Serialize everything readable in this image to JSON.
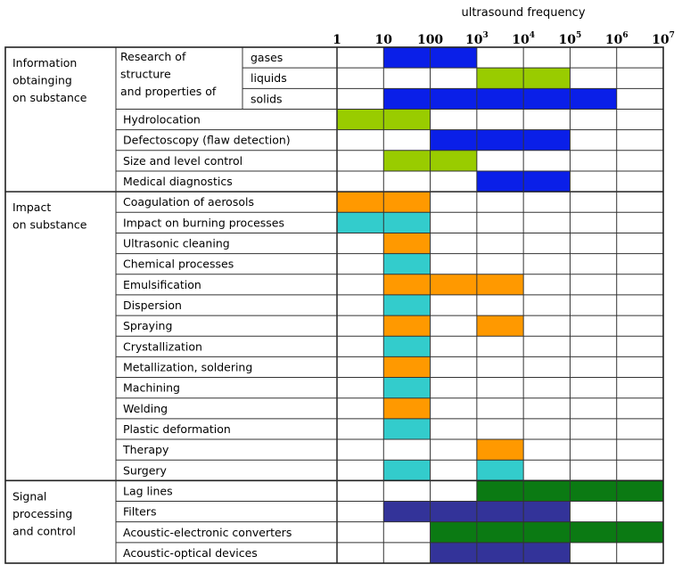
{
  "chart_data": {
    "type": "table",
    "title": "ultrasound frequency",
    "x_ticks": [
      {
        "base": "1",
        "exp": ""
      },
      {
        "base": "10",
        "exp": ""
      },
      {
        "base": "100",
        "exp": ""
      },
      {
        "base": "10",
        "exp": "3"
      },
      {
        "base": "10",
        "exp": "4"
      },
      {
        "base": "10",
        "exp": "5"
      },
      {
        "base": "10",
        "exp": "6"
      },
      {
        "base": "10",
        "exp": "7"
      }
    ],
    "x_range_log10": [
      0,
      7
    ],
    "colors": {
      "blue": "#0a1fe8",
      "light_green": "#99cc00",
      "dark_green": "#0b7a13",
      "orange": "#ff9900",
      "cyan": "#33cccc",
      "navy": "#333399"
    },
    "categories": [
      {
        "label_lines": [
          "Information",
          "obtainging",
          "on substance"
        ],
        "rows": [
          {
            "label": "gases",
            "group": [
              "Research of",
              "structure",
              "and properties of"
            ],
            "bars": [
              {
                "from": 1,
                "to": 3,
                "color": "blue"
              }
            ]
          },
          {
            "label": "liquids",
            "group": [
              "Research of",
              "structure",
              "and properties of"
            ],
            "bars": [
              {
                "from": 3,
                "to": 5,
                "color": "light_green"
              }
            ]
          },
          {
            "label": "solids",
            "group": [
              "Research of",
              "structure",
              "and properties of"
            ],
            "bars": [
              {
                "from": 1,
                "to": 6,
                "color": "blue"
              }
            ]
          },
          {
            "label": "Hydrolocation",
            "bars": [
              {
                "from": 0,
                "to": 2,
                "color": "light_green"
              }
            ]
          },
          {
            "label": "Defectoscopy (flaw detection)",
            "bars": [
              {
                "from": 2,
                "to": 5,
                "color": "blue"
              }
            ]
          },
          {
            "label": "Size and level control",
            "bars": [
              {
                "from": 1,
                "to": 3,
                "color": "light_green"
              }
            ]
          },
          {
            "label": "Medical diagnostics",
            "bars": [
              {
                "from": 3,
                "to": 5,
                "color": "blue"
              }
            ]
          }
        ]
      },
      {
        "label_lines": [
          "Impact",
          "on substance"
        ],
        "rows": [
          {
            "label": "Coagulation of aerosols",
            "bars": [
              {
                "from": 0,
                "to": 2,
                "color": "orange"
              }
            ]
          },
          {
            "label": "Impact on burning processes",
            "bars": [
              {
                "from": 0,
                "to": 2,
                "color": "cyan"
              }
            ]
          },
          {
            "label": "Ultrasonic cleaning",
            "bars": [
              {
                "from": 1,
                "to": 2,
                "color": "orange"
              }
            ]
          },
          {
            "label": "Chemical processes",
            "bars": [
              {
                "from": 1,
                "to": 2,
                "color": "cyan"
              }
            ]
          },
          {
            "label": "Emulsification",
            "bars": [
              {
                "from": 1,
                "to": 4,
                "color": "orange"
              }
            ]
          },
          {
            "label": "Dispersion",
            "bars": [
              {
                "from": 1,
                "to": 2,
                "color": "cyan"
              }
            ]
          },
          {
            "label": "Spraying",
            "bars": [
              {
                "from": 1,
                "to": 2,
                "color": "orange"
              },
              {
                "from": 3,
                "to": 4,
                "color": "orange"
              }
            ]
          },
          {
            "label": "Crystallization",
            "bars": [
              {
                "from": 1,
                "to": 2,
                "color": "cyan"
              }
            ]
          },
          {
            "label": "Metallization, soldering",
            "bars": [
              {
                "from": 1,
                "to": 2,
                "color": "orange"
              }
            ]
          },
          {
            "label": "Machining",
            "bars": [
              {
                "from": 1,
                "to": 2,
                "color": "cyan"
              }
            ]
          },
          {
            "label": "Welding",
            "bars": [
              {
                "from": 1,
                "to": 2,
                "color": "orange"
              }
            ]
          },
          {
            "label": "Plastic deformation",
            "bars": [
              {
                "from": 1,
                "to": 2,
                "color": "cyan"
              }
            ]
          },
          {
            "label": "Therapy",
            "bars": [
              {
                "from": 3,
                "to": 4,
                "color": "orange"
              }
            ]
          },
          {
            "label": "Surgery",
            "bars": [
              {
                "from": 1,
                "to": 2,
                "color": "cyan"
              },
              {
                "from": 3,
                "to": 4,
                "color": "cyan"
              }
            ]
          }
        ]
      },
      {
        "label_lines": [
          "Signal",
          "processing",
          "and control"
        ],
        "rows": [
          {
            "label": "Lag lines",
            "bars": [
              {
                "from": 3,
                "to": 7,
                "color": "dark_green"
              }
            ]
          },
          {
            "label": "Filters",
            "bars": [
              {
                "from": 1,
                "to": 5,
                "color": "navy"
              }
            ]
          },
          {
            "label": "Acoustic-electronic converters",
            "bars": [
              {
                "from": 2,
                "to": 7,
                "color": "dark_green"
              }
            ]
          },
          {
            "label": "Acoustic-optical devices",
            "bars": [
              {
                "from": 2,
                "to": 5,
                "color": "navy"
              }
            ]
          }
        ]
      }
    ]
  }
}
